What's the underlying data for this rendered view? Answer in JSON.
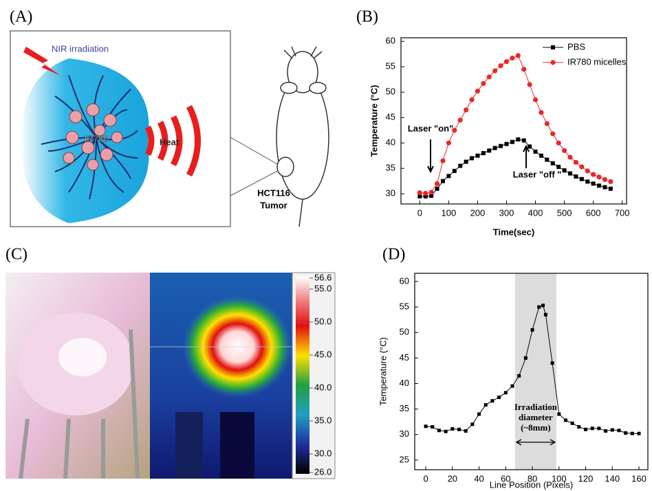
{
  "panel_labels": [
    "(A)",
    "(B)",
    "(C)",
    "(D)"
  ],
  "panel_a": {
    "irradiation": "NIR irradiation",
    "drug": "IR780",
    "heat": "Heat",
    "tumor": [
      "HCT116",
      "Tumor"
    ]
  },
  "panel_c": {
    "colorbar_labels": [
      "56.6",
      "55.0",
      "50.0",
      "45.0",
      "40.0",
      "35.0",
      "30.0",
      "26.0"
    ]
  },
  "chart_data": [
    {
      "type": "line",
      "xlabel": "Time(sec)",
      "ylabel": "Temperature (°C)",
      "legend": "upper right",
      "x": [
        0,
        20,
        40,
        60,
        80,
        100,
        120,
        140,
        160,
        180,
        200,
        220,
        240,
        260,
        280,
        300,
        320,
        340,
        360,
        380,
        400,
        420,
        440,
        460,
        480,
        500,
        520,
        540,
        560,
        580,
        600,
        620,
        640,
        660
      ],
      "series": [
        {
          "name": "PBS",
          "color": "#000000",
          "marker": "square",
          "values": [
            29.5,
            29.5,
            29.6,
            31,
            32.5,
            33.5,
            34.5,
            35.5,
            36.3,
            37,
            37.5,
            38,
            38.5,
            39,
            39.4,
            39.8,
            40.2,
            40.7,
            40.5,
            39.3,
            38.3,
            37.5,
            36.7,
            36,
            35.3,
            34.6,
            34,
            33.4,
            32.9,
            32.4,
            32,
            31.6,
            31.3,
            31
          ]
        },
        {
          "name": "IR780 micelles",
          "color": "#e8282a",
          "marker": "circle",
          "values": [
            30.2,
            30.1,
            30.3,
            32,
            36.5,
            40,
            42.5,
            44.5,
            46.5,
            48.5,
            50.2,
            51.7,
            53,
            54.2,
            55.2,
            56,
            56.7,
            57.2,
            54.5,
            51.5,
            48.5,
            46,
            43.8,
            41.8,
            40,
            38.5,
            37.2,
            36.2,
            35.3,
            34.5,
            33.8,
            33.3,
            32.8,
            32.4
          ]
        }
      ],
      "annotations": [
        "Laser \"on\"",
        "Laser \"off \""
      ],
      "xlim": [
        -65,
        715
      ],
      "ylim": [
        28,
        60.7
      ],
      "xticks": [
        0,
        100,
        200,
        300,
        400,
        500,
        600,
        700
      ],
      "yticks": [
        30,
        35,
        40,
        45,
        50,
        55,
        60
      ]
    },
    {
      "type": "line",
      "xlabel": "Line Position (Pixels)",
      "ylabel": "Temperature (°C)",
      "x": [
        0,
        5,
        10,
        15,
        20,
        25,
        30,
        35,
        40,
        45,
        50,
        55,
        60,
        65,
        70,
        75,
        80,
        85,
        88,
        90,
        95,
        100,
        105,
        110,
        115,
        120,
        125,
        130,
        135,
        140,
        145,
        150,
        155,
        160
      ],
      "series": [
        {
          "color": "#000000",
          "marker": "square",
          "values": [
            31.6,
            31.5,
            30.8,
            30.6,
            31.1,
            31,
            30.7,
            32,
            34,
            35.8,
            36.6,
            37.3,
            38.2,
            39.5,
            41.5,
            45,
            50.5,
            55,
            55.3,
            53.5,
            44,
            34,
            32.8,
            32.2,
            31.5,
            31,
            31.2,
            31.2,
            30.7,
            30.9,
            30.8,
            30.3,
            30.2,
            30.2
          ]
        }
      ],
      "highlight_span": [
        67,
        98
      ],
      "highlight_color": "#dcdcdc",
      "annotation_lines": [
        "Irradiation",
        "diameter",
        "(~8mm)"
      ],
      "xlim": [
        -8.3,
        166.7
      ],
      "ylim": [
        23.1,
        61.6
      ],
      "xticks": [
        0,
        20,
        40,
        60,
        80,
        100,
        120,
        140,
        160
      ],
      "yticks": [
        25,
        30,
        35,
        40,
        45,
        50,
        55,
        60
      ]
    }
  ]
}
